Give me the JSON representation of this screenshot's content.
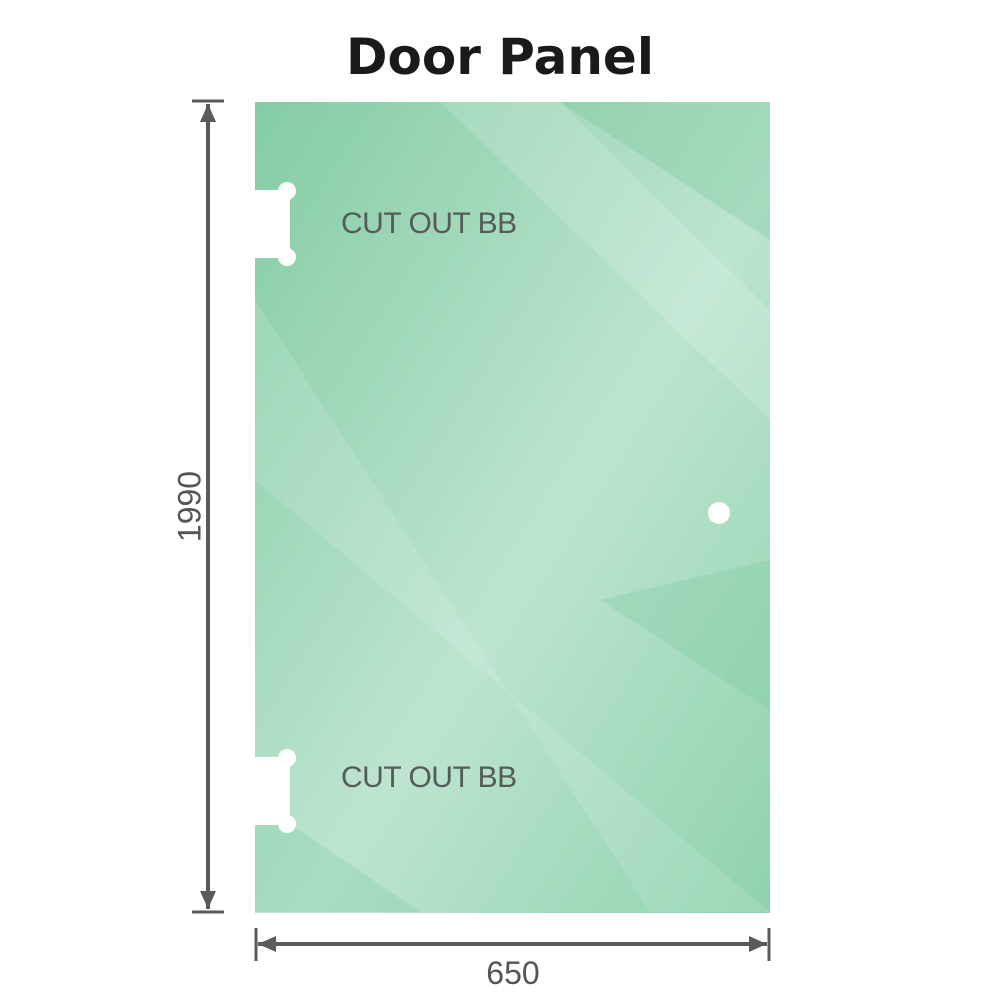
{
  "title": "Door Panel",
  "labels": {
    "cutout_top": "CUT OUT BB",
    "cutout_bottom": "CUT OUT BB"
  },
  "dimensions": {
    "height": "1990",
    "width": "650"
  },
  "colors": {
    "glass": "#8fd0ac",
    "glass_light": "#bde4cf",
    "dimension_line": "#5a5a5a"
  }
}
